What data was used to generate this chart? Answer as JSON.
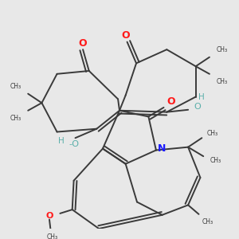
{
  "bg_color": "#e8e8e8",
  "bond_color": "#3a3a3a",
  "bond_width": 1.4,
  "O_color": "#ff1a1a",
  "N_color": "#1a1aff",
  "OH_color": "#5aafaa",
  "figsize": [
    3.0,
    3.0
  ],
  "dpi": 100,
  "xlim": [
    0,
    300
  ],
  "ylim": [
    0,
    300
  ]
}
